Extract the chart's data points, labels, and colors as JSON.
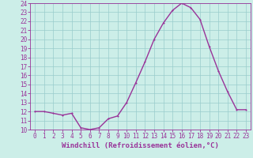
{
  "hours": [
    0,
    1,
    2,
    3,
    4,
    5,
    6,
    7,
    8,
    9,
    10,
    11,
    12,
    13,
    14,
    15,
    16,
    17,
    18,
    19,
    20,
    21,
    22,
    23
  ],
  "values": [
    12.0,
    12.0,
    11.8,
    11.6,
    11.8,
    10.2,
    10.0,
    10.2,
    11.2,
    11.5,
    13.0,
    15.2,
    17.5,
    20.0,
    21.8,
    23.2,
    24.0,
    23.5,
    22.2,
    19.2,
    16.5,
    14.2,
    12.2,
    12.2
  ],
  "line_color": "#993399",
  "marker_color": "#993399",
  "bg_color": "#cceee8",
  "grid_color": "#99cccc",
  "xlabel": "Windchill (Refroidissement éolien,°C)",
  "ylim": [
    10,
    24
  ],
  "xlim": [
    -0.5,
    23.5
  ],
  "yticks": [
    10,
    11,
    12,
    13,
    14,
    15,
    16,
    17,
    18,
    19,
    20,
    21,
    22,
    23,
    24
  ],
  "xticks": [
    0,
    1,
    2,
    3,
    4,
    5,
    6,
    7,
    8,
    9,
    10,
    11,
    12,
    13,
    14,
    15,
    16,
    17,
    18,
    19,
    20,
    21,
    22,
    23
  ],
  "tick_fontsize": 5.5,
  "xlabel_fontsize": 6.5,
  "linewidth": 1.0,
  "markersize": 2.0
}
